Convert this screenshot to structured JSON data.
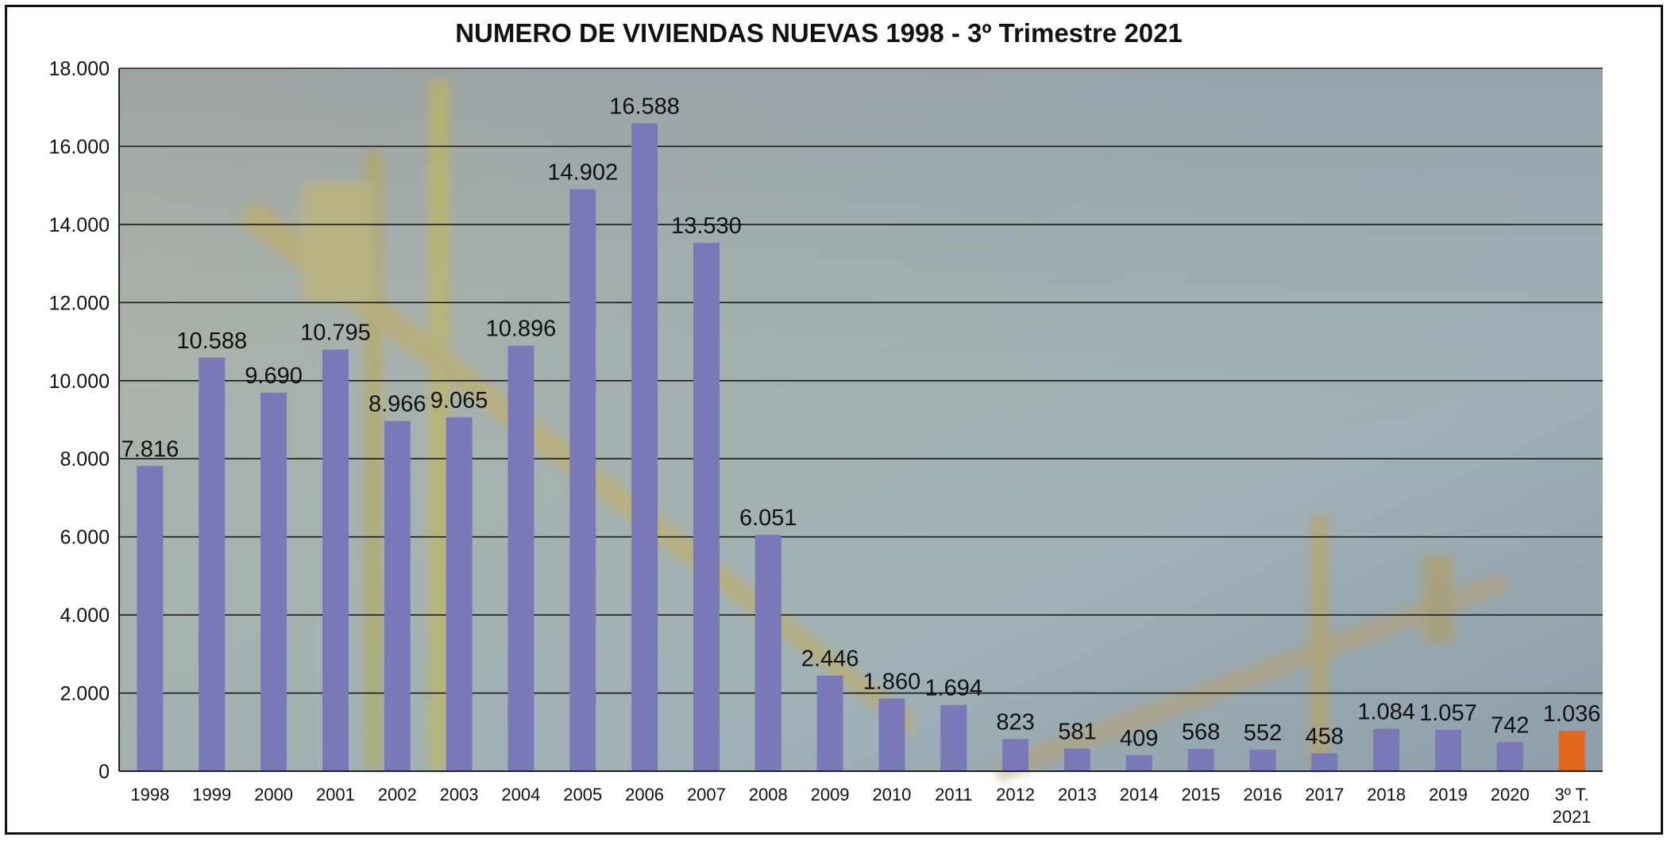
{
  "chart_data": {
    "type": "bar",
    "title": "NUMERO DE VIVIENDAS NUEVAS 1998 - 3º Trimestre 2021",
    "xlabel": "",
    "ylabel": "",
    "ylim": [
      0,
      18000
    ],
    "yticks": [
      0,
      2000,
      4000,
      6000,
      8000,
      10000,
      12000,
      14000,
      16000,
      18000
    ],
    "ytick_labels": [
      "0",
      "2.000",
      "4.000",
      "6.000",
      "8.000",
      "10.000",
      "12.000",
      "14.000",
      "16.000",
      "18.000"
    ],
    "grid": true,
    "categories": [
      "1998",
      "1999",
      "2000",
      "2001",
      "2002",
      "2003",
      "2004",
      "2005",
      "2006",
      "2007",
      "2008",
      "2009",
      "2010",
      "2011",
      "2012",
      "2013",
      "2014",
      "2015",
      "2016",
      "2017",
      "2018",
      "2019",
      "2020",
      "3º T. 2021"
    ],
    "values": [
      7816,
      10588,
      9690,
      10795,
      8966,
      9065,
      10896,
      14902,
      16588,
      13530,
      6051,
      2446,
      1860,
      1694,
      823,
      581,
      409,
      568,
      552,
      458,
      1084,
      1057,
      742,
      1036
    ],
    "value_labels": [
      "7.816",
      "10.588",
      "9.690",
      "10.795",
      "8.966",
      "9.065",
      "10.896",
      "14.902",
      "16.588",
      "13.530",
      "6.051",
      "2.446",
      "1.860",
      "1.694",
      "823",
      "581",
      "409",
      "568",
      "552",
      "458",
      "1.084",
      "1.057",
      "742",
      "1.036"
    ],
    "colors": {
      "bar": "#7a79b8",
      "highlight_bar": "#e0661c",
      "highlight_index": 23,
      "grid": "#1a1a1a"
    }
  }
}
